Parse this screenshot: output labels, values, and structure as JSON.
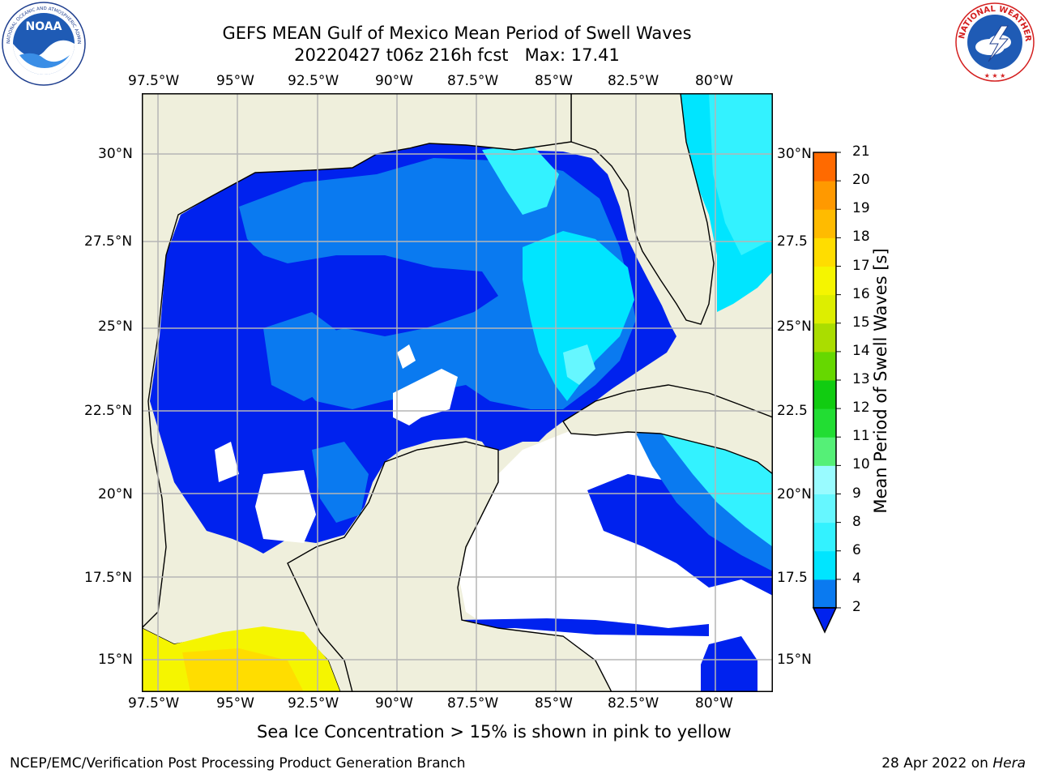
{
  "header": {
    "title_line1": "GEFS MEAN Gulf of Mexico Mean Period of Swell Waves",
    "title_line2": "20220427 t06z 216h fcst   Max: 17.41"
  },
  "logos": {
    "left": "NOAA",
    "left_ring_text": "NATIONAL OCEANIC AND ATMOSPHERIC ADMINISTRATION · U.S. DEPARTMENT OF COMMERCE",
    "right_ring_text": "NATIONAL WEATHER SERVICE"
  },
  "map": {
    "lon_labels": [
      "97.5°W",
      "95°W",
      "92.5°W",
      "90°W",
      "87.5°W",
      "85°W",
      "82.5°W",
      "80°W"
    ],
    "lat_labels_left": [
      "30°N",
      "27.5°N",
      "25°N",
      "22.5°N",
      "20°N",
      "17.5°N",
      "15°N"
    ],
    "lat_labels_right": [
      "30°N",
      "27.5",
      "25°N",
      "22.5",
      "20°N",
      "17.5",
      "15°N"
    ]
  },
  "colorbar": {
    "label": "Mean Period of Swell Waves [s]",
    "ticks": [
      "2",
      "4",
      "6",
      "8",
      "9",
      "10",
      "11",
      "12",
      "13",
      "14",
      "15",
      "16",
      "17",
      "18",
      "19",
      "20",
      "21"
    ],
    "colors": [
      "#0a7af0",
      "#00e5ff",
      "#33f2ff",
      "#66f7ff",
      "#99fbff",
      "#55f077",
      "#22dd33",
      "#11cc11",
      "#66d800",
      "#aadd00",
      "#ddee00",
      "#f5f500",
      "#ffdd00",
      "#ffbb00",
      "#ff9900",
      "#ff6a00",
      "#ff3b00",
      "#ff0000"
    ],
    "below_color": "#0022ee"
  },
  "notes": {
    "sea_ice": "Sea Ice Concentration > 15% is shown in pink to yellow",
    "credit": "NCEP/EMC/Verification Post Processing Product Generation Branch",
    "date_prefix": "28 Apr 2022 on ",
    "date_host": "Hera"
  }
}
